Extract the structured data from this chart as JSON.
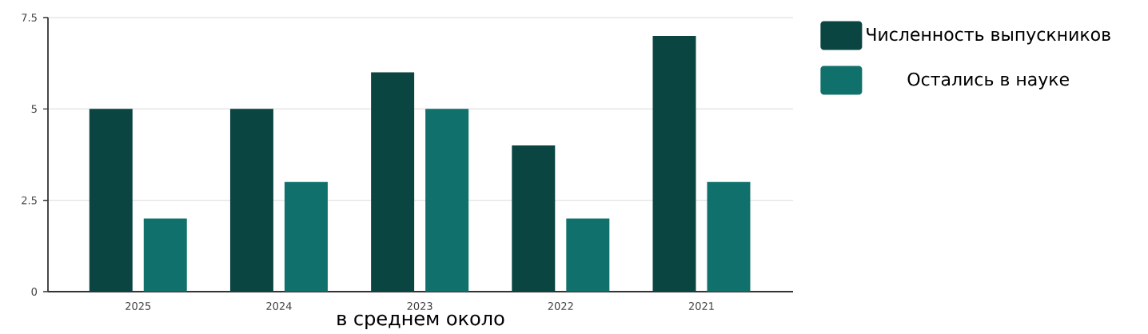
{
  "chart_data": {
    "type": "bar",
    "xlabel": "в среднем около",
    "categories": [
      "2025",
      "2024",
      "2023",
      "2022",
      "2021"
    ],
    "series": [
      {
        "name": "Численность выпускников",
        "color": "#0b4542",
        "values": [
          5,
          5,
          6,
          4,
          7
        ]
      },
      {
        "name": "Остались в науке",
        "color": "#10716c",
        "values": [
          2,
          3,
          5,
          2,
          3
        ]
      }
    ],
    "ylim": [
      0,
      7.5
    ],
    "yticks": [
      0,
      2.5,
      5,
      7.5
    ],
    "grid": "y",
    "legend": "top right"
  }
}
